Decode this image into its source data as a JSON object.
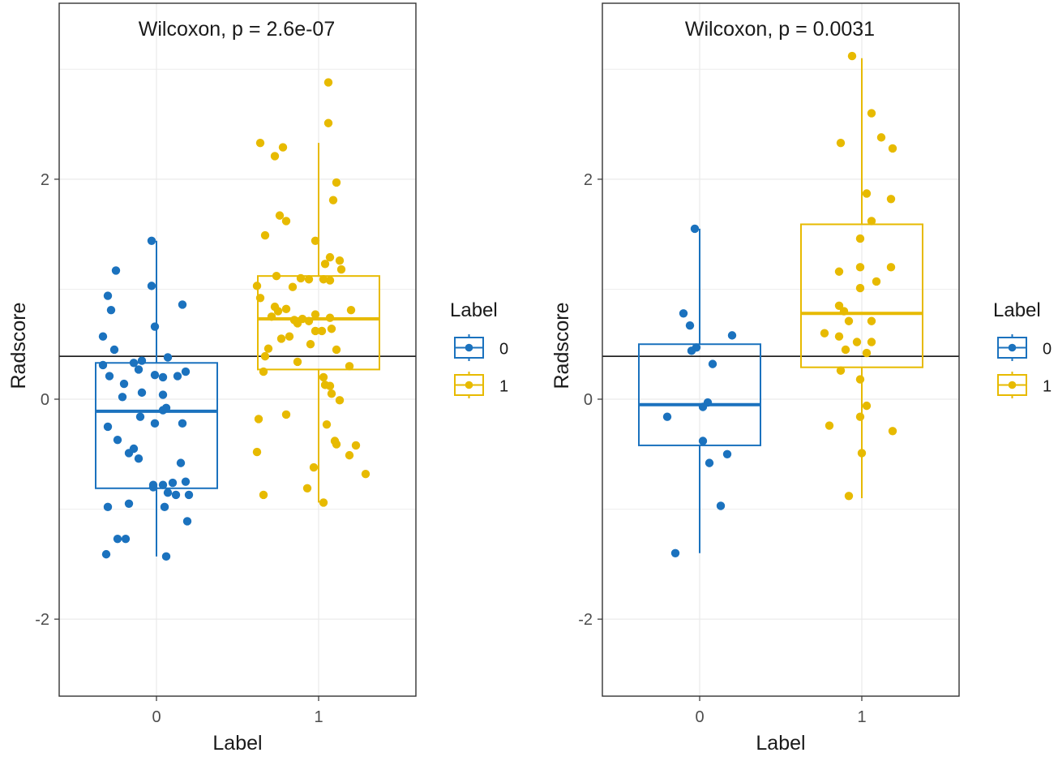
{
  "colors": {
    "group0": "#1B72BE",
    "group1": "#E7BA00",
    "grid": "#EBEBEB",
    "axis_line": "#333333",
    "text": "#1a1a1a",
    "tick_text": "#4d4d4d",
    "reference_line": "#000000"
  },
  "chart_data": [
    {
      "type": "boxplot",
      "title": "Wilcoxon, p = 2.6e-07",
      "xlabel": "Label",
      "ylabel": "Radscore",
      "ylim": [
        -2.7,
        3.6
      ],
      "yticks": [
        -2,
        0,
        2
      ],
      "ytick_labels": [
        "-2",
        "0",
        "2"
      ],
      "categories": [
        "0",
        "1"
      ],
      "reference_line": 0.39,
      "legend": {
        "title": "Label",
        "entries": [
          "0",
          "1"
        ],
        "position": "right"
      },
      "boxes": [
        {
          "label": "0",
          "q1": -0.81,
          "median": -0.11,
          "q3": 0.33,
          "whisker_low": -1.43,
          "whisker_high": 1.44
        },
        {
          "label": "1",
          "q1": 0.27,
          "median": 0.73,
          "q3": 1.12,
          "whisker_low": -0.94,
          "whisker_high": 2.33
        }
      ],
      "points": [
        [
          [
            -0.03,
            1.44
          ],
          [
            -0.25,
            1.17
          ],
          [
            -0.03,
            1.03
          ],
          [
            -0.3,
            0.94
          ],
          [
            0.16,
            0.86
          ],
          [
            -0.28,
            0.81
          ],
          [
            -0.01,
            0.66
          ],
          [
            -0.33,
            0.57
          ],
          [
            -0.26,
            0.45
          ],
          [
            -0.09,
            0.35
          ],
          [
            0.07,
            0.38
          ],
          [
            -0.33,
            0.31
          ],
          [
            -0.14,
            0.33
          ],
          [
            -0.11,
            0.27
          ],
          [
            0.18,
            0.25
          ],
          [
            0.13,
            0.21
          ],
          [
            -0.01,
            0.22
          ],
          [
            -0.29,
            0.21
          ],
          [
            0.04,
            0.2
          ],
          [
            -0.2,
            0.14
          ],
          [
            -0.09,
            0.06
          ],
          [
            0.04,
            0.04
          ],
          [
            -0.21,
            0.02
          ],
          [
            0.06,
            -0.08
          ],
          [
            0.04,
            -0.1
          ],
          [
            -0.1,
            -0.16
          ],
          [
            -0.01,
            -0.22
          ],
          [
            0.16,
            -0.22
          ],
          [
            -0.3,
            -0.25
          ],
          [
            -0.24,
            -0.37
          ],
          [
            -0.14,
            -0.45
          ],
          [
            -0.17,
            -0.49
          ],
          [
            -0.11,
            -0.54
          ],
          [
            0.15,
            -0.58
          ],
          [
            -0.02,
            -0.78
          ],
          [
            0.18,
            -0.75
          ],
          [
            0.1,
            -0.76
          ],
          [
            0.04,
            -0.78
          ],
          [
            -0.02,
            -0.8
          ],
          [
            0.07,
            -0.85
          ],
          [
            0.12,
            -0.87
          ],
          [
            0.2,
            -0.87
          ],
          [
            -0.3,
            -0.98
          ],
          [
            -0.17,
            -0.95
          ],
          [
            0.05,
            -0.98
          ],
          [
            0.19,
            -1.11
          ],
          [
            -0.24,
            -1.27
          ],
          [
            -0.19,
            -1.27
          ],
          [
            -0.31,
            -1.41
          ],
          [
            0.06,
            -1.43
          ]
        ],
        [
          [
            0.06,
            2.88
          ],
          [
            0.06,
            2.51
          ],
          [
            -0.36,
            2.33
          ],
          [
            -0.22,
            2.29
          ],
          [
            -0.27,
            2.21
          ],
          [
            0.11,
            1.97
          ],
          [
            0.09,
            1.81
          ],
          [
            -0.24,
            1.67
          ],
          [
            -0.2,
            1.62
          ],
          [
            -0.33,
            1.49
          ],
          [
            -0.02,
            1.44
          ],
          [
            0.07,
            1.29
          ],
          [
            0.13,
            1.26
          ],
          [
            0.04,
            1.23
          ],
          [
            0.14,
            1.18
          ],
          [
            -0.26,
            1.12
          ],
          [
            -0.11,
            1.1
          ],
          [
            -0.06,
            1.09
          ],
          [
            0.03,
            1.09
          ],
          [
            0.07,
            1.08
          ],
          [
            -0.38,
            1.03
          ],
          [
            -0.16,
            1.02
          ],
          [
            -0.36,
            0.92
          ],
          [
            -0.27,
            0.84
          ],
          [
            -0.2,
            0.82
          ],
          [
            -0.25,
            0.8
          ],
          [
            0.2,
            0.81
          ],
          [
            -0.02,
            0.77
          ],
          [
            -0.29,
            0.75
          ],
          [
            0.07,
            0.74
          ],
          [
            -0.1,
            0.73
          ],
          [
            -0.15,
            0.72
          ],
          [
            -0.06,
            0.71
          ],
          [
            -0.13,
            0.69
          ],
          [
            0.08,
            0.64
          ],
          [
            -0.02,
            0.62
          ],
          [
            0.02,
            0.62
          ],
          [
            -0.18,
            0.57
          ],
          [
            -0.23,
            0.55
          ],
          [
            -0.05,
            0.5
          ],
          [
            -0.31,
            0.46
          ],
          [
            0.11,
            0.45
          ],
          [
            -0.33,
            0.39
          ],
          [
            -0.13,
            0.34
          ],
          [
            0.19,
            0.3
          ],
          [
            -0.34,
            0.25
          ],
          [
            0.03,
            0.2
          ],
          [
            0.04,
            0.13
          ],
          [
            0.07,
            0.12
          ],
          [
            0.08,
            0.05
          ],
          [
            0.13,
            -0.01
          ],
          [
            -0.2,
            -0.14
          ],
          [
            -0.37,
            -0.18
          ],
          [
            0.05,
            -0.23
          ],
          [
            0.1,
            -0.38
          ],
          [
            0.11,
            -0.41
          ],
          [
            0.23,
            -0.42
          ],
          [
            -0.38,
            -0.48
          ],
          [
            0.19,
            -0.51
          ],
          [
            -0.03,
            -0.62
          ],
          [
            0.29,
            -0.68
          ],
          [
            -0.07,
            -0.81
          ],
          [
            -0.34,
            -0.87
          ],
          [
            0.03,
            -0.94
          ]
        ]
      ]
    },
    {
      "type": "boxplot",
      "title": "Wilcoxon, p = 0.0031",
      "xlabel": "Label",
      "ylabel": "Radscore",
      "ylim": [
        -2.7,
        3.6
      ],
      "yticks": [
        -2,
        0,
        2
      ],
      "ytick_labels": [
        "-2",
        "0",
        "2"
      ],
      "categories": [
        "0",
        "1"
      ],
      "reference_line": 0.39,
      "legend": {
        "title": "Label",
        "entries": [
          "0",
          "1"
        ],
        "position": "right"
      },
      "boxes": [
        {
          "label": "0",
          "q1": -0.42,
          "median": -0.05,
          "q3": 0.5,
          "whisker_low": -1.4,
          "whisker_high": 1.55
        },
        {
          "label": "1",
          "q1": 0.29,
          "median": 0.78,
          "q3": 1.59,
          "whisker_low": -0.9,
          "whisker_high": 3.1
        }
      ],
      "points": [
        [
          [
            -0.03,
            1.55
          ],
          [
            -0.1,
            0.78
          ],
          [
            -0.06,
            0.67
          ],
          [
            0.2,
            0.58
          ],
          [
            -0.02,
            0.47
          ],
          [
            -0.05,
            0.44
          ],
          [
            0.08,
            0.32
          ],
          [
            0.05,
            -0.03
          ],
          [
            0.02,
            -0.07
          ],
          [
            -0.2,
            -0.16
          ],
          [
            0.02,
            -0.38
          ],
          [
            0.17,
            -0.5
          ],
          [
            0.06,
            -0.58
          ],
          [
            0.13,
            -0.97
          ],
          [
            -0.15,
            -1.4
          ]
        ],
        [
          [
            -0.06,
            3.12
          ],
          [
            0.06,
            2.6
          ],
          [
            -0.13,
            2.33
          ],
          [
            0.12,
            2.38
          ],
          [
            0.19,
            2.28
          ],
          [
            0.03,
            1.87
          ],
          [
            0.18,
            1.82
          ],
          [
            0.06,
            1.62
          ],
          [
            -0.01,
            1.46
          ],
          [
            0.18,
            1.2
          ],
          [
            -0.01,
            1.2
          ],
          [
            -0.14,
            1.16
          ],
          [
            0.09,
            1.07
          ],
          [
            -0.01,
            1.01
          ],
          [
            -0.14,
            0.85
          ],
          [
            -0.11,
            0.8
          ],
          [
            0.06,
            0.71
          ],
          [
            -0.08,
            0.71
          ],
          [
            -0.23,
            0.6
          ],
          [
            -0.14,
            0.57
          ],
          [
            -0.03,
            0.52
          ],
          [
            0.06,
            0.52
          ],
          [
            -0.1,
            0.45
          ],
          [
            0.03,
            0.42
          ],
          [
            -0.13,
            0.26
          ],
          [
            -0.01,
            0.18
          ],
          [
            -0.2,
            -0.24
          ],
          [
            0.03,
            -0.06
          ],
          [
            -0.01,
            -0.16
          ],
          [
            0.19,
            -0.29
          ],
          [
            0.0,
            -0.49
          ],
          [
            -0.08,
            -0.88
          ]
        ]
      ]
    }
  ]
}
